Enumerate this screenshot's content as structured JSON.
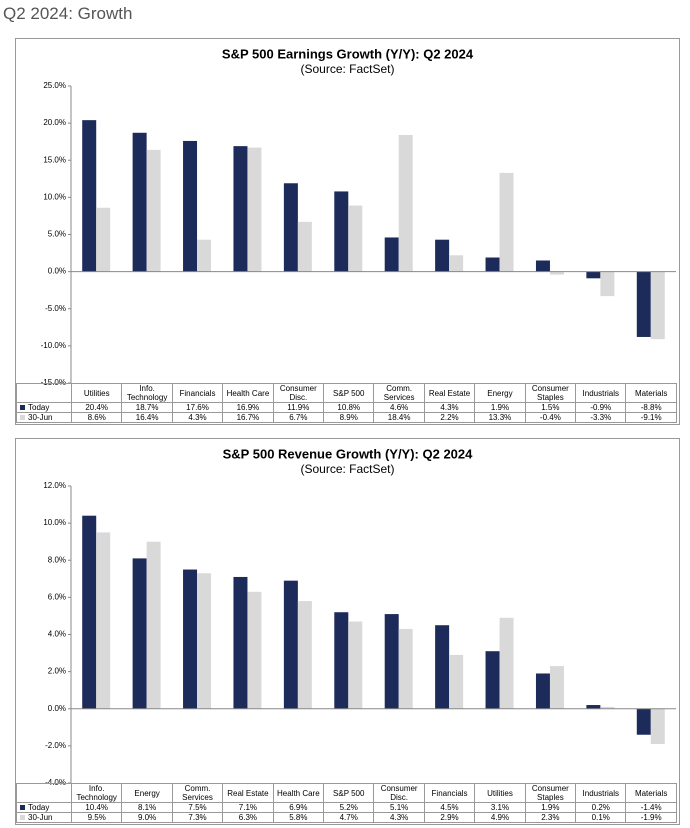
{
  "heading": "Q2 2024: Growth",
  "chart_data": [
    {
      "type": "bar",
      "title": "S&P 500 Earnings Growth (Y/Y): Q2 2024",
      "subtitle": "(Source: FactSet)",
      "categories": [
        "Utilities",
        "Info. Technology",
        "Financials",
        "Health Care",
        "Consumer Disc.",
        "S&P 500",
        "Comm. Services",
        "Real Estate",
        "Energy",
        "Consumer Staples",
        "Industrials",
        "Materials"
      ],
      "series": [
        {
          "name": "Today",
          "color": "#1c2b59",
          "values": [
            20.4,
            18.7,
            17.6,
            16.9,
            11.9,
            10.8,
            4.6,
            4.3,
            1.9,
            1.5,
            -0.9,
            -8.8
          ],
          "value_labels": [
            "20.4%",
            "18.7%",
            "17.6%",
            "16.9%",
            "11.9%",
            "10.8%",
            "4.6%",
            "4.3%",
            "1.9%",
            "1.5%",
            "-0.9%",
            "-8.8%"
          ]
        },
        {
          "name": "30-Jun",
          "color": "#d9d9d9",
          "values": [
            8.6,
            16.4,
            4.3,
            16.7,
            6.7,
            8.9,
            18.4,
            2.2,
            13.3,
            -0.4,
            -3.3,
            -9.1
          ],
          "value_labels": [
            "8.6%",
            "16.4%",
            "4.3%",
            "16.7%",
            "6.7%",
            "8.9%",
            "18.4%",
            "2.2%",
            "13.3%",
            "-0.4%",
            "-3.3%",
            "-9.1%"
          ]
        }
      ],
      "ylim": [
        -15,
        25
      ],
      "yticks": [
        {
          "value": -15,
          "label": "-15.0%"
        },
        {
          "value": -10,
          "label": "-10.0%"
        },
        {
          "value": -5,
          "label": "-5.0%"
        },
        {
          "value": 0,
          "label": "0.0%"
        },
        {
          "value": 5,
          "label": "5.0%"
        },
        {
          "value": 10,
          "label": "10.0%"
        },
        {
          "value": 15,
          "label": "15.0%"
        },
        {
          "value": 20,
          "label": "20.0%"
        },
        {
          "value": 25,
          "label": "25.0%"
        }
      ],
      "grid": false
    },
    {
      "type": "bar",
      "title": "S&P 500 Revenue Growth (Y/Y): Q2 2024",
      "subtitle": "(Source: FactSet)",
      "categories": [
        "Info. Technology",
        "Energy",
        "Comm. Services",
        "Real Estate",
        "Health Care",
        "S&P 500",
        "Consumer Disc.",
        "Financials",
        "Utilities",
        "Consumer Staples",
        "Industrials",
        "Materials"
      ],
      "series": [
        {
          "name": "Today",
          "color": "#1c2b59",
          "values": [
            10.4,
            8.1,
            7.5,
            7.1,
            6.9,
            5.2,
            5.1,
            4.5,
            3.1,
            1.9,
            0.2,
            -1.4
          ],
          "value_labels": [
            "10.4%",
            "8.1%",
            "7.5%",
            "7.1%",
            "6.9%",
            "5.2%",
            "5.1%",
            "4.5%",
            "3.1%",
            "1.9%",
            "0.2%",
            "-1.4%"
          ]
        },
        {
          "name": "30-Jun",
          "color": "#d9d9d9",
          "values": [
            9.5,
            9.0,
            7.3,
            6.3,
            5.8,
            4.7,
            4.3,
            2.9,
            4.9,
            2.3,
            0.1,
            -1.9
          ],
          "value_labels": [
            "9.5%",
            "9.0%",
            "7.3%",
            "6.3%",
            "5.8%",
            "4.7%",
            "4.3%",
            "2.9%",
            "4.9%",
            "2.3%",
            "0.1%",
            "-1.9%"
          ]
        }
      ],
      "ylim": [
        -4,
        12
      ],
      "yticks": [
        {
          "value": -4,
          "label": "-4.0%"
        },
        {
          "value": -2,
          "label": "-2.0%"
        },
        {
          "value": 0,
          "label": "0.0%"
        },
        {
          "value": 2,
          "label": "2.0%"
        },
        {
          "value": 4,
          "label": "4.0%"
        },
        {
          "value": 6,
          "label": "6.0%"
        },
        {
          "value": 8,
          "label": "8.0%"
        },
        {
          "value": 10,
          "label": "10.0%"
        },
        {
          "value": 12,
          "label": "12.0%"
        }
      ],
      "grid": false
    }
  ]
}
